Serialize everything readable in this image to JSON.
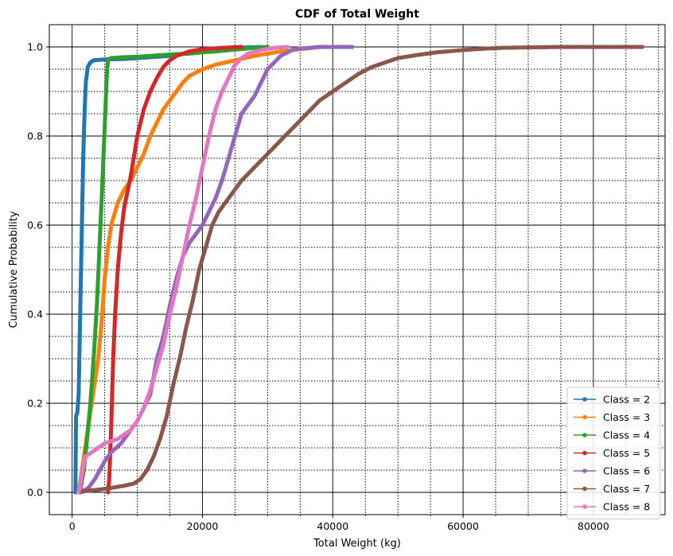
{
  "chart_data": {
    "type": "line",
    "title": "CDF of Total Weight",
    "xlabel": "Total Weight (kg)",
    "ylabel": "Cumulative Probability",
    "xlim": [
      -3500,
      91000
    ],
    "ylim": [
      -0.05,
      1.05
    ],
    "x_ticks": [
      0,
      20000,
      40000,
      60000,
      80000
    ],
    "x_tick_labels": [
      "0",
      "20000",
      "40000",
      "60000",
      "80000"
    ],
    "y_ticks": [
      0.0,
      0.2,
      0.4,
      0.6,
      0.8,
      1.0
    ],
    "y_tick_labels": [
      "0.0",
      "0.2",
      "0.4",
      "0.6",
      "0.8",
      "1.0"
    ],
    "grid": {
      "major": "solid",
      "minor": "dotted"
    },
    "legend_position": "lower-right",
    "series": [
      {
        "name": "Class = 2",
        "color": "#1f77b4",
        "points": [
          [
            500,
            0
          ],
          [
            600,
            0.17
          ],
          [
            800,
            0.18
          ],
          [
            1000,
            0.22
          ],
          [
            1300,
            0.45
          ],
          [
            1500,
            0.6
          ],
          [
            1700,
            0.75
          ],
          [
            1900,
            0.85
          ],
          [
            2100,
            0.92
          ],
          [
            2400,
            0.955
          ],
          [
            2800,
            0.965
          ],
          [
            3300,
            0.97
          ],
          [
            5000,
            0.972
          ],
          [
            8000,
            0.973
          ],
          [
            10000,
            0.975
          ],
          [
            15000,
            0.98
          ],
          [
            20000,
            0.99
          ],
          [
            25000,
            0.998
          ],
          [
            29000,
            1.0
          ]
        ]
      },
      {
        "name": "Class = 3",
        "color": "#ff7f0e",
        "points": [
          [
            1000,
            0
          ],
          [
            1500,
            0.05
          ],
          [
            2000,
            0.1
          ],
          [
            2500,
            0.15
          ],
          [
            3000,
            0.2
          ],
          [
            3500,
            0.25
          ],
          [
            4000,
            0.3
          ],
          [
            4500,
            0.38
          ],
          [
            5000,
            0.48
          ],
          [
            5500,
            0.55
          ],
          [
            6000,
            0.6
          ],
          [
            7000,
            0.65
          ],
          [
            8000,
            0.68
          ],
          [
            9000,
            0.7
          ],
          [
            10000,
            0.73
          ],
          [
            11000,
            0.76
          ],
          [
            12000,
            0.8
          ],
          [
            13000,
            0.83
          ],
          [
            14000,
            0.86
          ],
          [
            15000,
            0.88
          ],
          [
            16000,
            0.9
          ],
          [
            17000,
            0.92
          ],
          [
            18000,
            0.935
          ],
          [
            20000,
            0.95
          ],
          [
            22000,
            0.96
          ],
          [
            25000,
            0.97
          ],
          [
            28000,
            0.98
          ],
          [
            32000,
            0.99
          ],
          [
            35000,
            0.995
          ],
          [
            38000,
            1.0
          ]
        ]
      },
      {
        "name": "Class = 4",
        "color": "#2ca02c",
        "points": [
          [
            1200,
            0
          ],
          [
            1800,
            0.05
          ],
          [
            2300,
            0.12
          ],
          [
            2800,
            0.2
          ],
          [
            3300,
            0.3
          ],
          [
            3800,
            0.42
          ],
          [
            4200,
            0.55
          ],
          [
            4600,
            0.68
          ],
          [
            5000,
            0.82
          ],
          [
            5300,
            0.93
          ],
          [
            5500,
            0.972
          ],
          [
            6000,
            0.975
          ],
          [
            8000,
            0.977
          ],
          [
            10000,
            0.978
          ],
          [
            12000,
            0.98
          ],
          [
            15000,
            0.983
          ],
          [
            18000,
            0.985
          ],
          [
            20000,
            0.988
          ],
          [
            22000,
            0.99
          ],
          [
            25000,
            0.994
          ],
          [
            28000,
            0.998
          ],
          [
            30000,
            1.0
          ]
        ]
      },
      {
        "name": "Class = 5",
        "color": "#d62728",
        "points": [
          [
            5500,
            0
          ],
          [
            5700,
            0.03
          ],
          [
            6000,
            0.15
          ],
          [
            6300,
            0.3
          ],
          [
            6600,
            0.4
          ],
          [
            7000,
            0.5
          ],
          [
            7500,
            0.58
          ],
          [
            8000,
            0.64
          ],
          [
            9000,
            0.71
          ],
          [
            10000,
            0.8
          ],
          [
            11000,
            0.86
          ],
          [
            12000,
            0.9
          ],
          [
            13000,
            0.93
          ],
          [
            14000,
            0.955
          ],
          [
            15000,
            0.97
          ],
          [
            16000,
            0.98
          ],
          [
            18000,
            0.99
          ],
          [
            20000,
            0.995
          ],
          [
            23000,
            0.998
          ],
          [
            26000,
            1.0
          ]
        ]
      },
      {
        "name": "Class = 6",
        "color": "#9467bd",
        "points": [
          [
            1200,
            0
          ],
          [
            2500,
            0.01
          ],
          [
            3500,
            0.03
          ],
          [
            5000,
            0.07
          ],
          [
            6000,
            0.09
          ],
          [
            7500,
            0.11
          ],
          [
            8500,
            0.13
          ],
          [
            10000,
            0.16
          ],
          [
            11000,
            0.19
          ],
          [
            12000,
            0.22
          ],
          [
            13000,
            0.3
          ],
          [
            14000,
            0.35
          ],
          [
            15000,
            0.42
          ],
          [
            16000,
            0.48
          ],
          [
            17000,
            0.53
          ],
          [
            18000,
            0.56
          ],
          [
            19000,
            0.58
          ],
          [
            20000,
            0.6
          ],
          [
            21000,
            0.63
          ],
          [
            22000,
            0.66
          ],
          [
            23000,
            0.7
          ],
          [
            24000,
            0.75
          ],
          [
            25000,
            0.8
          ],
          [
            26000,
            0.85
          ],
          [
            27000,
            0.87
          ],
          [
            28000,
            0.89
          ],
          [
            29000,
            0.92
          ],
          [
            30000,
            0.95
          ],
          [
            32000,
            0.98
          ],
          [
            34000,
            0.995
          ],
          [
            38000,
            1.0
          ],
          [
            43000,
            1.0
          ]
        ]
      },
      {
        "name": "Class = 7",
        "color": "#8c564b",
        "points": [
          [
            1200,
            0
          ],
          [
            2000,
            0.003
          ],
          [
            4000,
            0.006
          ],
          [
            6000,
            0.01
          ],
          [
            8000,
            0.015
          ],
          [
            9500,
            0.02
          ],
          [
            10500,
            0.03
          ],
          [
            11500,
            0.05
          ],
          [
            12500,
            0.08
          ],
          [
            13500,
            0.12
          ],
          [
            14500,
            0.17
          ],
          [
            15500,
            0.24
          ],
          [
            16500,
            0.3
          ],
          [
            17500,
            0.37
          ],
          [
            18500,
            0.43
          ],
          [
            19500,
            0.5
          ],
          [
            20500,
            0.55
          ],
          [
            21500,
            0.6
          ],
          [
            22500,
            0.63
          ],
          [
            24000,
            0.66
          ],
          [
            26000,
            0.7
          ],
          [
            28000,
            0.73
          ],
          [
            30000,
            0.76
          ],
          [
            32000,
            0.79
          ],
          [
            34000,
            0.82
          ],
          [
            36000,
            0.85
          ],
          [
            38000,
            0.88
          ],
          [
            40000,
            0.9
          ],
          [
            42000,
            0.92
          ],
          [
            44000,
            0.94
          ],
          [
            46000,
            0.955
          ],
          [
            48000,
            0.965
          ],
          [
            50000,
            0.975
          ],
          [
            53000,
            0.982
          ],
          [
            56000,
            0.988
          ],
          [
            60000,
            0.993
          ],
          [
            63000,
            0.996
          ],
          [
            66000,
            0.998
          ],
          [
            70000,
            0.999
          ],
          [
            75000,
            1.0
          ],
          [
            80000,
            1.0
          ],
          [
            87500,
            1.0
          ]
        ]
      },
      {
        "name": "Class = 8",
        "color": "#e377c2",
        "points": [
          [
            1000,
            0
          ],
          [
            1300,
            0.02
          ],
          [
            1600,
            0.05
          ],
          [
            2000,
            0.08
          ],
          [
            3000,
            0.09
          ],
          [
            4000,
            0.1
          ],
          [
            5000,
            0.11
          ],
          [
            6000,
            0.115
          ],
          [
            7000,
            0.12
          ],
          [
            8000,
            0.13
          ],
          [
            9000,
            0.14
          ],
          [
            10000,
            0.16
          ],
          [
            11000,
            0.19
          ],
          [
            12000,
            0.23
          ],
          [
            13000,
            0.28
          ],
          [
            14000,
            0.33
          ],
          [
            15000,
            0.4
          ],
          [
            16000,
            0.46
          ],
          [
            17000,
            0.53
          ],
          [
            18000,
            0.6
          ],
          [
            19000,
            0.66
          ],
          [
            20000,
            0.73
          ],
          [
            21000,
            0.8
          ],
          [
            22000,
            0.86
          ],
          [
            23000,
            0.9
          ],
          [
            24000,
            0.93
          ],
          [
            25000,
            0.96
          ],
          [
            26000,
            0.975
          ],
          [
            27000,
            0.985
          ],
          [
            29000,
            0.993
          ],
          [
            31000,
            0.998
          ],
          [
            33000,
            1.0
          ]
        ]
      }
    ]
  }
}
